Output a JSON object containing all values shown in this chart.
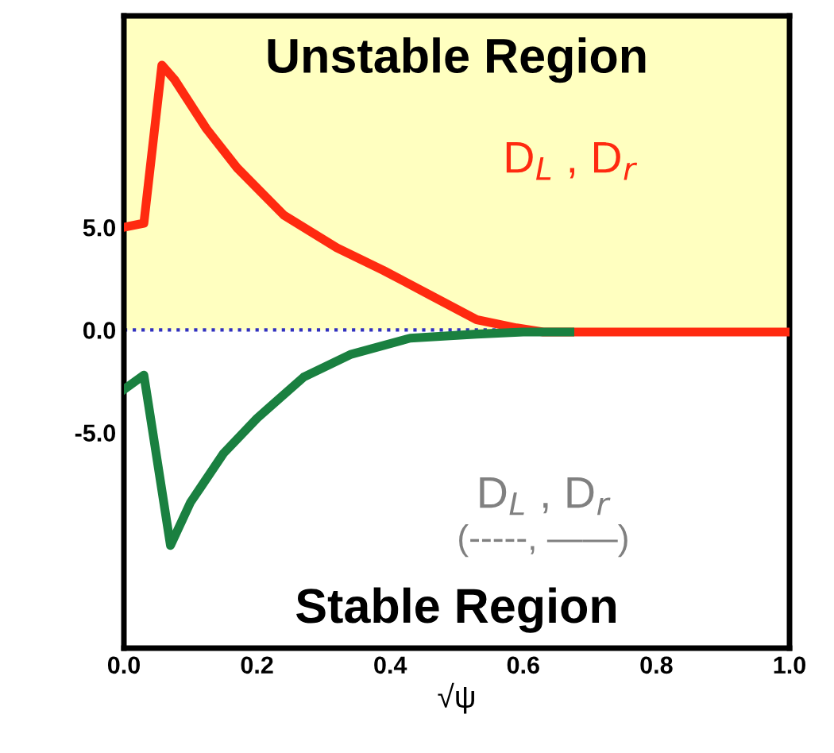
{
  "chart_data": {
    "type": "line",
    "xlabel": "√ψ",
    "annotations": [
      "Unstable Region",
      "D$_{L}$ , D$_{r}$",
      "D$_{L}$ , D$_{r}$",
      "(-----, ——)",
      "Stable Region"
    ],
    "series": [
      {
        "color": "#ff2a10",
        "x": [
          0,
          0.03,
          0.057,
          0.076,
          0.124,
          0.17,
          0.24,
          0.32,
          0.39,
          0.46,
          0.53,
          0.59,
          0.63,
          0.77,
          1.0
        ],
        "values": [
          5.0,
          5.2,
          12.9,
          12.2,
          9.8,
          7.9,
          5.6,
          4.0,
          2.9,
          1.7,
          0.5,
          0.1,
          -0.1,
          -0.1,
          -0.1
        ]
      },
      {
        "color": "#1a8040",
        "x": [
          0,
          0.03,
          0.07,
          0.1,
          0.15,
          0.2,
          0.27,
          0.34,
          0.43,
          0.53,
          0.6,
          0.67
        ],
        "values": [
          -2.9,
          -2.2,
          -10.5,
          -8.4,
          -6.0,
          -4.3,
          -2.3,
          -1.2,
          -0.4,
          -0.2,
          -0.1,
          -0.1
        ]
      }
    ],
    "xlim": [
      0,
      1
    ],
    "ylim": [
      -15.5,
      15.3
    ],
    "xticks": [
      {
        "value": 0,
        "label": "0.0"
      },
      0.2,
      0.4,
      0.6,
      0.8,
      {
        "value": 1,
        "label": "1.0"
      }
    ],
    "yticks": [
      {
        "value": -5,
        "label": "-5.0"
      },
      {
        "value": 0,
        "label": "0.0"
      },
      {
        "value": 5,
        "label": "5.0"
      }
    ],
    "ref_lines": [
      {
        "axis": "y",
        "value": 0,
        "color": "#3030c0",
        "line_style": "dotted"
      }
    ],
    "bands": [
      {
        "axis": "y",
        "from": 0,
        "to": 15.3,
        "color": "#ffffc0"
      }
    ],
    "grid": false,
    "line_style": "solid",
    "marker": "none"
  }
}
